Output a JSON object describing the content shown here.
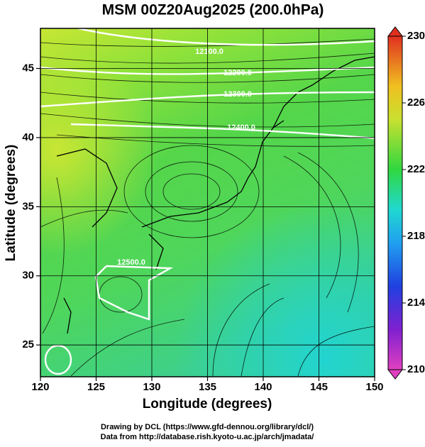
{
  "title": "MSM 00Z20Aug2025 (200.0hPa)",
  "x_axis": {
    "label": "Longitude (degrees)",
    "lim": [
      120,
      150
    ],
    "ticks": [
      120,
      125,
      130,
      135,
      140,
      145,
      150
    ]
  },
  "y_axis": {
    "label": "Latitude  (degrees)",
    "lim": [
      22.7,
      47.9
    ],
    "ticks": [
      25,
      30,
      35,
      40,
      45
    ]
  },
  "colorbar": {
    "lim": [
      210,
      230
    ],
    "ticks": [
      210,
      214,
      218,
      222,
      226,
      230
    ]
  },
  "contour_labels": [
    "12100.0",
    "12200.0",
    "12300.0",
    "12400.0",
    "12500.0"
  ],
  "footer": [
    "Drawing by DCL (https://www.gfd-dennou.org/library/dcl/)",
    "Data from http://database.rish.kyoto-u.ac.jp/arch/jmadata/"
  ]
}
